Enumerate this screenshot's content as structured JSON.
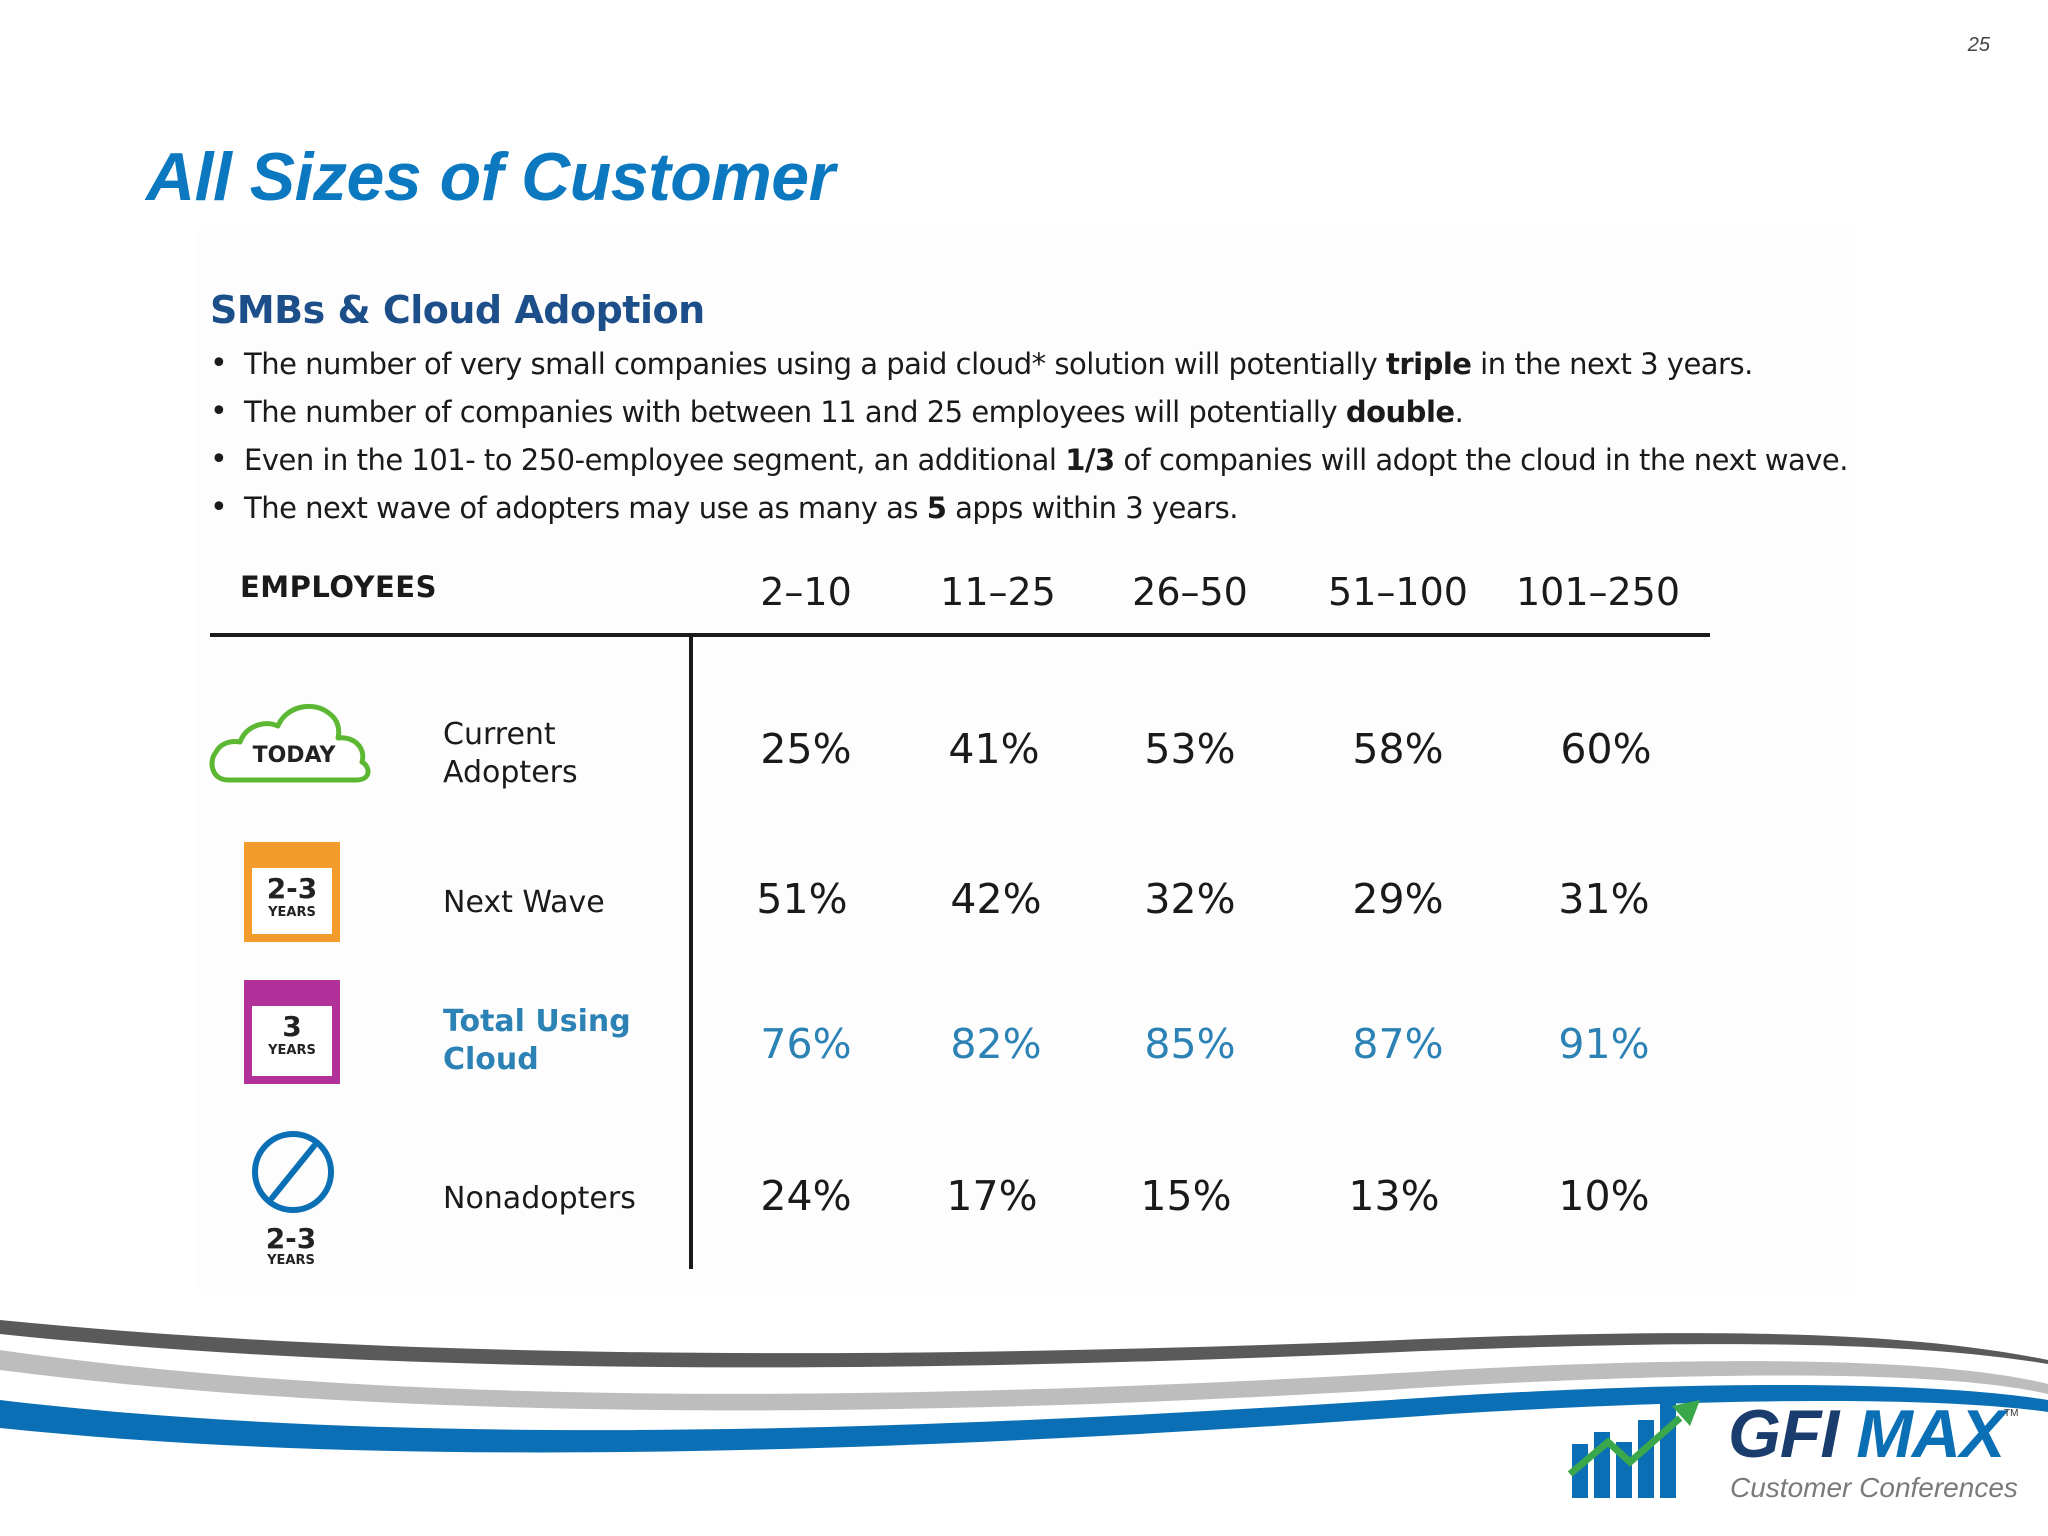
{
  "page_number": "25",
  "title": "All Sizes of Customer",
  "section_heading": "SMBs & Cloud Adoption",
  "bullets": [
    {
      "pre": "The number of very small companies using a paid cloud* solution will potentially ",
      "bold": "triple",
      "post": " in the next 3 years."
    },
    {
      "pre": "The number of companies with between 11 and 25 employees will potentially ",
      "bold": "double",
      "post": "."
    },
    {
      "pre": "Even in the 101- to 250-employee segment, an additional ",
      "bold": "1/3",
      "post": " of companies will adopt the cloud in the next wave."
    },
    {
      "pre": "The next wave of adopters may use as many as ",
      "bold": "5",
      "post": " apps within 3 years."
    }
  ],
  "table": {
    "header_label": "EMPLOYEES",
    "columns": [
      "2–10",
      "11–25",
      "26–50",
      "51–100",
      "101–250"
    ],
    "rows": [
      {
        "label_line1": "Current",
        "label_line2": "Adopters",
        "icon_text": "TODAY",
        "values": [
          "25%",
          "41%",
          "53%",
          "58%",
          "60%"
        ]
      },
      {
        "label_line1": "Next Wave",
        "label_line2": "",
        "icon_num": "2-3",
        "icon_sub": "YEARS",
        "values": [
          "51%",
          "42%",
          "32%",
          "29%",
          "31%"
        ]
      },
      {
        "label_line1": "Total Using",
        "label_line2": "Cloud",
        "icon_num": "3",
        "icon_sub": "YEARS",
        "values": [
          "76%",
          "82%",
          "85%",
          "87%",
          "91%"
        ]
      },
      {
        "label_line1": "Nonadopters",
        "label_line2": "",
        "icon_num": "2-3",
        "icon_sub": "YEARS",
        "values": [
          "24%",
          "17%",
          "15%",
          "13%",
          "10%"
        ]
      }
    ]
  },
  "logo": {
    "brand_gfi": "GFI",
    "brand_max": "MAX",
    "tm": "TM",
    "subtitle": "Customer Conferences"
  },
  "colors": {
    "title_blue": "#0b78c0",
    "heading_navy": "#1c4f8a",
    "highlight_blue": "#2c82b5",
    "cloud_green": "#5cb833",
    "orange": "#f39c2b",
    "magenta": "#b1309a"
  }
}
